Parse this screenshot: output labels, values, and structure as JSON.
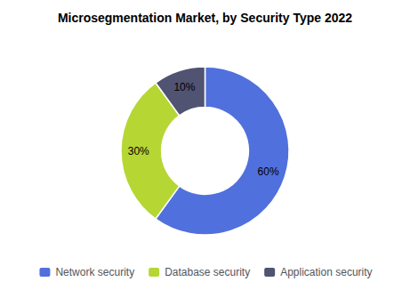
{
  "chart_data": {
    "type": "donut",
    "title": "Microsegmentation Market, by Security Type 2022",
    "categories": [
      "Network security",
      "Database security",
      "Application security"
    ],
    "values": [
      60,
      30,
      10
    ],
    "value_labels": [
      "60%",
      "30%",
      "10%"
    ],
    "data_labels": true,
    "legend": "bottom"
  }
}
